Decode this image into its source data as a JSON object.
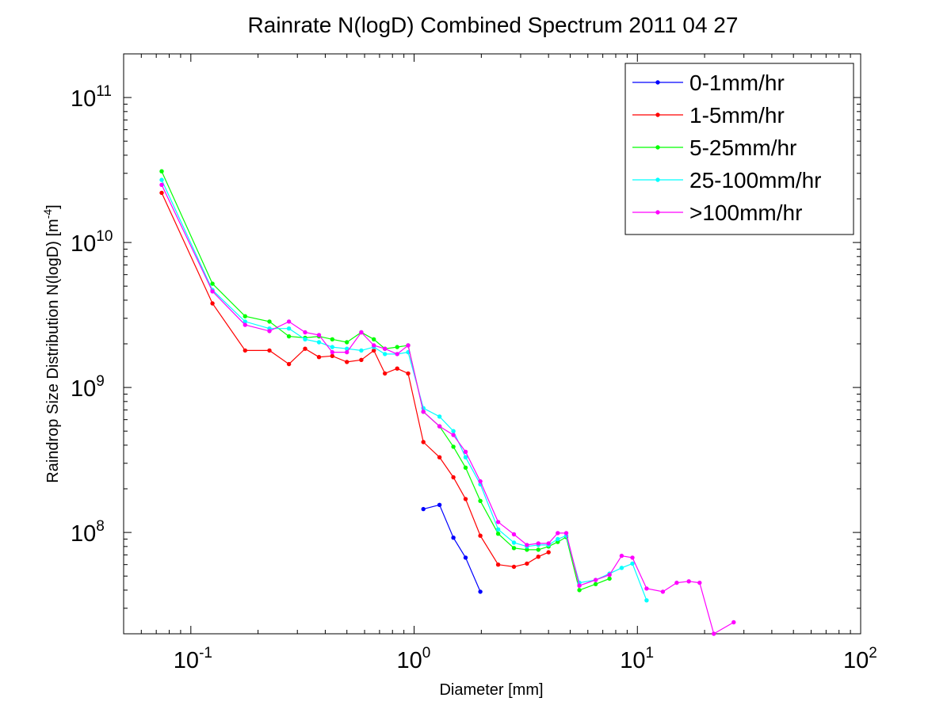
{
  "chart_data": {
    "type": "line",
    "title": "Rainrate N(logD) Combined Spectrum 2011 04 27",
    "xlabel": "Diameter [mm]",
    "ylabel": "Raindrop Size Distribution N(logD) [m-4]",
    "ylabel_main": "Raindrop Size Distribution N(logD) [m",
    "ylabel_exp": "-4",
    "ylabel_close": "]",
    "x_scale": "log",
    "y_scale": "log",
    "xlim": [
      0.05,
      100
    ],
    "ylim": [
      20000000,
      200000000000
    ],
    "grid": false,
    "legend_position": "top-right",
    "x_ticks": [
      {
        "base": "10",
        "exp": "-1"
      },
      {
        "base": "10",
        "exp": "0"
      },
      {
        "base": "10",
        "exp": "1"
      },
      {
        "base": "10",
        "exp": "2"
      }
    ],
    "y_ticks": [
      {
        "base": "10",
        "exp": "8"
      },
      {
        "base": "10",
        "exp": "9"
      },
      {
        "base": "10",
        "exp": "10"
      },
      {
        "base": "10",
        "exp": "11"
      }
    ],
    "series": [
      {
        "name": "0-1mm/hr",
        "color": "#0000ff",
        "points": [
          [
            1.1,
            145000000
          ],
          [
            1.3,
            155000000
          ],
          [
            1.5,
            92000000
          ],
          [
            1.7,
            67000000
          ],
          [
            1.98,
            39000000
          ]
        ]
      },
      {
        "name": "1-5mm/hr",
        "color": "#ff0000",
        "points": [
          [
            0.074,
            22000000000
          ],
          [
            0.125,
            3800000000
          ],
          [
            0.175,
            1800000000
          ],
          [
            0.225,
            1800000000
          ],
          [
            0.275,
            1450000000
          ],
          [
            0.325,
            1850000000
          ],
          [
            0.375,
            1620000000
          ],
          [
            0.43,
            1650000000
          ],
          [
            0.5,
            1500000000
          ],
          [
            0.58,
            1550000000
          ],
          [
            0.66,
            1800000000
          ],
          [
            0.74,
            1250000000
          ],
          [
            0.84,
            1350000000
          ],
          [
            0.94,
            1250000000
          ],
          [
            1.1,
            420000000
          ],
          [
            1.3,
            330000000
          ],
          [
            1.5,
            240000000
          ],
          [
            1.7,
            170000000
          ],
          [
            1.98,
            95000000
          ],
          [
            2.38,
            60000000
          ],
          [
            2.8,
            58000000
          ],
          [
            3.2,
            61000000
          ],
          [
            3.6,
            68000000
          ],
          [
            4.0,
            73000000
          ]
        ]
      },
      {
        "name": "5-25mm/hr",
        "color": "#00ff00",
        "points": [
          [
            0.074,
            31000000000
          ],
          [
            0.125,
            5200000000
          ],
          [
            0.175,
            3100000000
          ],
          [
            0.225,
            2850000000
          ],
          [
            0.275,
            2250000000
          ],
          [
            0.325,
            2200000000
          ],
          [
            0.375,
            2250000000
          ],
          [
            0.43,
            2150000000
          ],
          [
            0.5,
            2050000000
          ],
          [
            0.58,
            2400000000
          ],
          [
            0.66,
            2150000000
          ],
          [
            0.74,
            1850000000
          ],
          [
            0.84,
            1900000000
          ],
          [
            0.94,
            1950000000
          ],
          [
            1.1,
            680000000
          ],
          [
            1.3,
            540000000
          ],
          [
            1.5,
            390000000
          ],
          [
            1.7,
            280000000
          ],
          [
            1.98,
            165000000
          ],
          [
            2.38,
            98000000
          ],
          [
            2.8,
            78000000
          ],
          [
            3.2,
            76000000
          ],
          [
            3.6,
            76000000
          ],
          [
            4.0,
            80000000
          ],
          [
            4.4,
            86000000
          ],
          [
            4.8,
            93000000
          ],
          [
            5.5,
            40000000
          ],
          [
            6.5,
            44000000
          ],
          [
            7.5,
            48000000
          ]
        ]
      },
      {
        "name": "25-100mm/hr",
        "color": "#00ffff",
        "points": [
          [
            0.074,
            27000000000
          ],
          [
            0.125,
            4700000000
          ],
          [
            0.175,
            2850000000
          ],
          [
            0.225,
            2550000000
          ],
          [
            0.275,
            2550000000
          ],
          [
            0.325,
            2150000000
          ],
          [
            0.375,
            2050000000
          ],
          [
            0.43,
            1900000000
          ],
          [
            0.5,
            1850000000
          ],
          [
            0.58,
            1800000000
          ],
          [
            0.66,
            1900000000
          ],
          [
            0.74,
            1700000000
          ],
          [
            0.84,
            1700000000
          ],
          [
            0.94,
            1750000000
          ],
          [
            1.1,
            720000000
          ],
          [
            1.3,
            630000000
          ],
          [
            1.5,
            500000000
          ],
          [
            1.7,
            330000000
          ],
          [
            1.98,
            215000000
          ],
          [
            2.38,
            105000000
          ],
          [
            2.8,
            85000000
          ],
          [
            3.2,
            80000000
          ],
          [
            3.6,
            82000000
          ],
          [
            4.0,
            82000000
          ],
          [
            4.4,
            90000000
          ],
          [
            4.8,
            95000000
          ],
          [
            5.5,
            45000000
          ],
          [
            6.5,
            47000000
          ],
          [
            7.5,
            52000000
          ],
          [
            8.5,
            57000000
          ],
          [
            9.5,
            61000000
          ],
          [
            11.0,
            34000000
          ]
        ]
      },
      {
        "name": ">100mm/hr",
        "color": "#ff00ff",
        "points": [
          [
            0.074,
            25000000000
          ],
          [
            0.125,
            4600000000
          ],
          [
            0.175,
            2700000000
          ],
          [
            0.225,
            2450000000
          ],
          [
            0.275,
            2850000000
          ],
          [
            0.325,
            2400000000
          ],
          [
            0.375,
            2300000000
          ],
          [
            0.43,
            1750000000
          ],
          [
            0.5,
            1750000000
          ],
          [
            0.58,
            2400000000
          ],
          [
            0.66,
            1950000000
          ],
          [
            0.74,
            1850000000
          ],
          [
            0.84,
            1700000000
          ],
          [
            0.94,
            1950000000
          ],
          [
            1.1,
            680000000
          ],
          [
            1.3,
            540000000
          ],
          [
            1.5,
            470000000
          ],
          [
            1.7,
            360000000
          ],
          [
            1.98,
            225000000
          ],
          [
            2.38,
            118000000
          ],
          [
            2.8,
            97000000
          ],
          [
            3.2,
            82000000
          ],
          [
            3.6,
            84000000
          ],
          [
            4.0,
            84000000
          ],
          [
            4.4,
            99000000
          ],
          [
            4.8,
            99000000
          ],
          [
            5.5,
            43000000
          ],
          [
            6.5,
            47000000
          ],
          [
            7.5,
            51000000
          ],
          [
            8.5,
            69000000
          ],
          [
            9.5,
            67000000
          ],
          [
            11.0,
            41000000
          ],
          [
            13.0,
            39000000
          ],
          [
            15.0,
            45000000
          ],
          [
            17.0,
            46000000
          ],
          [
            19.0,
            45000000
          ],
          [
            22.0,
            20000000
          ],
          [
            27.0,
            24000000
          ]
        ]
      }
    ]
  }
}
